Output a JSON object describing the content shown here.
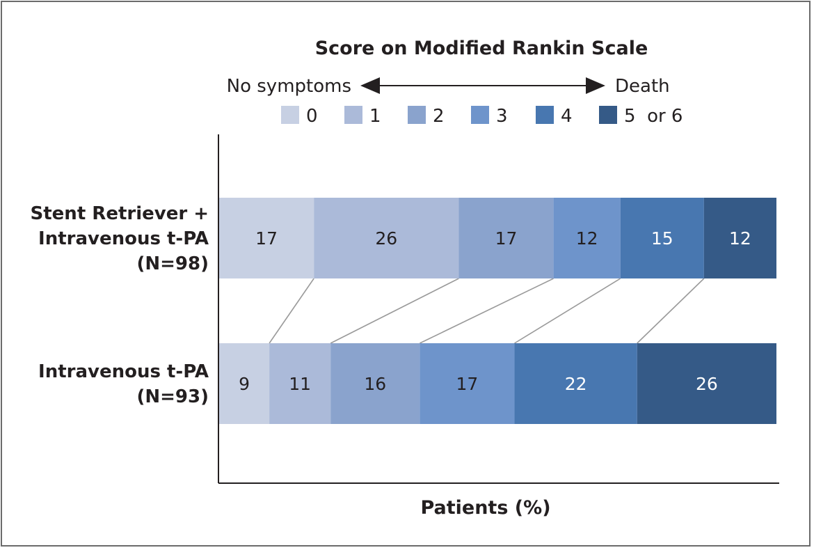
{
  "chart_data": {
    "type": "bar",
    "orientation": "horizontal",
    "stacked": true,
    "title": "Score on Modified Rankin Scale",
    "scale_left": "No symptoms",
    "scale_right": "Death",
    "xlabel": "Patients (%)",
    "xlim": [
      0,
      100
    ],
    "legend": {
      "placement": "top",
      "entries": [
        "0",
        "1",
        "2",
        "3",
        "4",
        "5  or 6"
      ]
    },
    "colors": [
      "#c7d0e3",
      "#abbad9",
      "#8aa3cd",
      "#6e94cb",
      "#4877b0",
      "#355a87"
    ],
    "categories": [
      {
        "lines": [
          "Stent Retriever +",
          "Intravenous t-PA",
          "(N=98)"
        ]
      },
      {
        "lines": [
          "Intravenous t-PA",
          "(N=93)"
        ]
      }
    ],
    "values": [
      [
        17,
        26,
        17,
        12,
        15,
        12
      ],
      [
        9,
        11,
        16,
        17,
        22,
        26
      ]
    ]
  }
}
